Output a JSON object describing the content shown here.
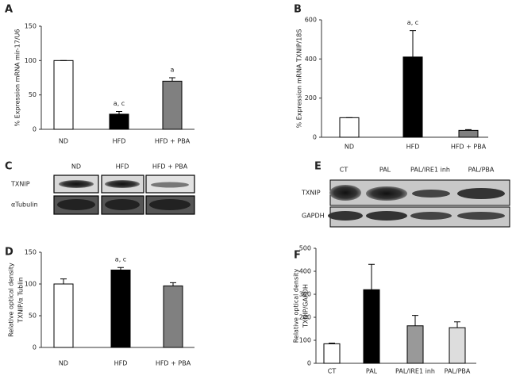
{
  "chart_data": [
    {
      "type": "bar",
      "panel": "A",
      "ylabel": [
        "% Expression mRNA mir-17/U6"
      ],
      "categories": [
        "ND",
        "HFD",
        "HFD + PBA"
      ],
      "values": [
        100,
        22,
        70
      ],
      "errors": [
        0,
        4,
        5
      ],
      "colors": [
        "#ffffff",
        "#000000",
        "#808080"
      ],
      "ylim": [
        0,
        150
      ],
      "yticks": [
        0,
        50,
        100,
        150
      ],
      "annotations": [
        {
          "text": "a, c",
          "x": "HFD"
        },
        {
          "text": "a",
          "x": "HFD + PBA"
        }
      ]
    },
    {
      "type": "bar",
      "panel": "B",
      "ylabel": [
        "% Expression mRNA TXNIP/18S"
      ],
      "categories": [
        "ND",
        "HFD",
        "HFD + PBA"
      ],
      "values": [
        100,
        410,
        35
      ],
      "errors": [
        0,
        135,
        4
      ],
      "colors": [
        "#ffffff",
        "#000000",
        "#808080"
      ],
      "ylim": [
        0,
        600
      ],
      "yticks": [
        0,
        200,
        400,
        600
      ],
      "annotations": [
        {
          "text": "a, c",
          "x": "HFD"
        }
      ]
    },
    {
      "type": "bar",
      "panel": "D",
      "ylabel": [
        "Relative optical density",
        "TXNIP/α Tublin"
      ],
      "categories": [
        "ND",
        "HFD",
        "HFD + PBA"
      ],
      "values": [
        100,
        122,
        97
      ],
      "errors": [
        8,
        4,
        5
      ],
      "colors": [
        "#ffffff",
        "#000000",
        "#808080"
      ],
      "ylim": [
        0,
        150
      ],
      "yticks": [
        0,
        50,
        100,
        150
      ],
      "annotations": [
        {
          "text": "a, c",
          "x": "HFD"
        }
      ]
    },
    {
      "type": "bar",
      "panel": "F",
      "ylabel": [
        "Relative optical density",
        "TXNIP/GAPDH"
      ],
      "categories": [
        "CT",
        "PAL",
        "PAL/IRE1 inh",
        "PAL/PBA"
      ],
      "values": [
        85,
        320,
        163,
        155
      ],
      "errors": [
        3,
        110,
        45,
        25
      ],
      "colors": [
        "#ffffff",
        "#000000",
        "#999999",
        "#dddddd"
      ],
      "ylim": [
        0,
        500
      ],
      "yticks": [
        0,
        100,
        200,
        300,
        400,
        500
      ],
      "annotations": []
    }
  ],
  "blots": [
    {
      "panel": "C",
      "lanes": [
        "ND",
        "HFD",
        "HFD + PBA"
      ],
      "rows": [
        "TXNIP",
        "αTubulin"
      ]
    },
    {
      "panel": "E",
      "lanes": [
        "CT",
        "PAL",
        "PAL/IRE1 inh",
        "PAL/PBA"
      ],
      "rows": [
        "TXNIP",
        "GAPDH"
      ]
    }
  ]
}
